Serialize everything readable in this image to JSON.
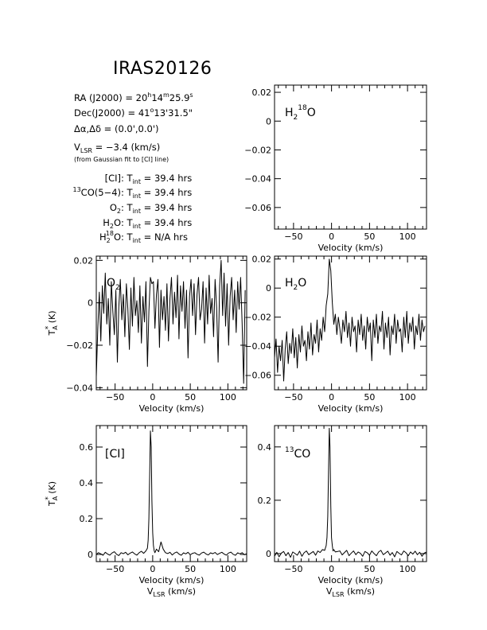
{
  "header": {
    "title": "IRAS20126",
    "ra": {
      "lead": "RA (J2000) =  20",
      "h": "h",
      "mid1": "14",
      "m": "m",
      "mid2": "25.9",
      "s": "s"
    },
    "dec": {
      "lead": "Dec(J2000) =  41",
      "deg": "o",
      "tail": "13'31.5\""
    },
    "offset": "Δα,Δδ = (0.0',0.0')",
    "vlsr": {
      "lead": "V",
      "sub": "LSR",
      "tail": " = −3.4 (km/s)"
    },
    "vlsr_note": "(from Gaussian fit to [CI] line)",
    "integrations": [
      {
        "pre": "",
        "sup": "",
        "name": "[CI]",
        "sub": "",
        "sup2": "",
        "rest": "",
        "tint": "39.4"
      },
      {
        "pre": "",
        "sup": "13",
        "name": "CO(5−4)",
        "sub": "",
        "sup2": "",
        "rest": "",
        "tint": "39.4"
      },
      {
        "pre": "",
        "sup": "",
        "name": "O",
        "sub": "2",
        "sup2": "",
        "rest": "",
        "tint": "39.4"
      },
      {
        "pre": "",
        "sup": "",
        "name": "H",
        "sub": "2",
        "sup2": "",
        "rest": "O",
        "tint": "39.4"
      },
      {
        "pre": "",
        "sup": "",
        "name": "H",
        "sub": "2",
        "sup2": "18",
        "rest": "O",
        "tint": "N/A"
      }
    ],
    "tint_label": "T",
    "tint_sub": "int",
    "tint_unit": "hrs"
  },
  "labels": {
    "velocity_axis": "Velocity (km/s)",
    "vlsr_axis_main": "V",
    "vlsr_axis_sub": "LSR",
    "vlsr_axis_unit": " (km/s)",
    "ta_axis_main": "T",
    "ta_axis_sub": "A",
    "ta_axis_sup": "*",
    "ta_axis_unit": " (K)"
  },
  "chart_data": [
    {
      "id": "h218o",
      "type": "line",
      "label": {
        "main": "H",
        "sub": "2",
        "sup": "18",
        "rest": "O"
      },
      "xlim": [
        -75,
        125
      ],
      "ylim": [
        -0.075,
        0.025
      ],
      "yticks": [
        0.02,
        0,
        -0.02,
        -0.04,
        -0.06
      ],
      "ytick_labels": [
        "0.02",
        "0",
        "−0.02",
        "−0.04",
        "−0.06"
      ],
      "xticks": [
        -50,
        0,
        50,
        100
      ],
      "xtick_labels": [
        "−50",
        "0",
        "50",
        "100"
      ],
      "xlabel": "velocity",
      "ylabel": "",
      "series": []
    },
    {
      "id": "o2",
      "type": "line",
      "label": {
        "main": "O",
        "sub": "2",
        "sup": "",
        "rest": ""
      },
      "xlim": [
        -75,
        125
      ],
      "ylim": [
        -0.041,
        0.022
      ],
      "yticks": [
        0.02,
        0,
        -0.02,
        -0.04
      ],
      "ytick_labels": [
        "0.02",
        "0",
        "−0.02",
        "−0.04"
      ],
      "xticks": [
        -50,
        0,
        50,
        100
      ],
      "xtick_labels": [
        "−50",
        "0",
        "50",
        "100"
      ],
      "xlabel": "velocity",
      "ylabel": "ta",
      "series": [
        {
          "x": [
            -75,
            -73,
            -71,
            -69,
            -67,
            -65,
            -63,
            -61,
            -59,
            -57,
            -55,
            -53,
            -51,
            -49,
            -47,
            -45,
            -43,
            -41,
            -39,
            -37,
            -35,
            -33,
            -31,
            -29,
            -27,
            -25,
            -23,
            -21,
            -19,
            -17,
            -15,
            -13,
            -11,
            -9,
            -7,
            -5,
            -3,
            -1,
            1,
            3,
            5,
            7,
            9,
            11,
            13,
            15,
            17,
            19,
            21,
            23,
            25,
            27,
            29,
            31,
            33,
            35,
            37,
            39,
            41,
            43,
            45,
            47,
            49,
            51,
            53,
            55,
            57,
            59,
            61,
            63,
            65,
            67,
            69,
            71,
            73,
            75,
            77,
            79,
            81,
            83,
            85,
            87,
            89,
            91,
            93,
            95,
            97,
            99,
            101,
            103,
            105,
            107,
            109,
            111,
            113,
            115,
            117,
            119,
            121,
            123
          ],
          "y": [
            -0.035,
            -0.012,
            0.005,
            -0.018,
            0.008,
            -0.005,
            0.014,
            -0.01,
            0.002,
            -0.02,
            0.01,
            -0.004,
            -0.015,
            0.006,
            -0.028,
            -0.002,
            0.011,
            -0.008,
            0.004,
            -0.016,
            0.009,
            -0.003,
            -0.022,
            0.007,
            -0.011,
            0.012,
            -0.006,
            0.001,
            -0.014,
            0.008,
            -0.019,
            0.003,
            -0.009,
            0.01,
            -0.03,
            -0.004,
            0.012,
            0.009,
            0.01,
            -0.012,
            0.004,
            0.011,
            -0.021,
            0.006,
            -0.008,
            0.003,
            -0.013,
            0.009,
            -0.018,
            0.002,
            0.012,
            -0.01,
            0.005,
            -0.007,
            0.013,
            -0.017,
            0.008,
            -0.004,
            0.01,
            -0.012,
            0.006,
            -0.026,
            0.003,
            0.011,
            -0.006,
            0.009,
            -0.015,
            0.004,
            0.012,
            -0.008,
            -0.003,
            0.01,
            -0.019,
            0.007,
            -0.01,
            0.013,
            -0.005,
            0.002,
            -0.016,
            0.011,
            -0.002,
            -0.028,
            0.008,
            0.02,
            -0.006,
            0.014,
            -0.011,
            0.009,
            -0.02,
            0.003,
            0.012,
            -0.008,
            0.006,
            -0.014,
            0.01,
            -0.003,
            0.012,
            -0.01,
            -0.038,
            0.006
          ]
        }
      ]
    },
    {
      "id": "h2o",
      "type": "line",
      "label": {
        "main": "H",
        "sub": "2",
        "sup": "",
        "rest": "O"
      },
      "xlim": [
        -75,
        125
      ],
      "ylim": [
        -0.07,
        0.022
      ],
      "yticks": [
        0.02,
        0,
        -0.02,
        -0.04,
        -0.06
      ],
      "ytick_labels": [
        "0.02",
        "0",
        "−0.02",
        "−0.04",
        "−0.06"
      ],
      "xticks": [
        -50,
        0,
        50,
        100
      ],
      "xtick_labels": [
        "−50",
        "0",
        "50",
        "100"
      ],
      "xlabel": "velocity",
      "ylabel": "",
      "series": [
        {
          "x": [
            -75,
            -73,
            -71,
            -69,
            -67,
            -65,
            -63,
            -61,
            -59,
            -57,
            -55,
            -53,
            -51,
            -49,
            -47,
            -45,
            -43,
            -41,
            -39,
            -37,
            -35,
            -33,
            -31,
            -29,
            -27,
            -25,
            -23,
            -21,
            -19,
            -17,
            -15,
            -13,
            -11,
            -9,
            -7,
            -5,
            -3,
            -1,
            1,
            3,
            5,
            7,
            9,
            11,
            13,
            15,
            17,
            19,
            21,
            23,
            25,
            27,
            29,
            31,
            33,
            35,
            37,
            39,
            41,
            43,
            45,
            47,
            49,
            51,
            53,
            55,
            57,
            59,
            61,
            63,
            65,
            67,
            69,
            71,
            73,
            75,
            77,
            79,
            81,
            83,
            85,
            87,
            89,
            91,
            93,
            95,
            97,
            99,
            101,
            103,
            105,
            107,
            109,
            111,
            113,
            115,
            117,
            119,
            121,
            123
          ],
          "y": [
            -0.048,
            -0.035,
            -0.058,
            -0.04,
            -0.05,
            -0.036,
            -0.064,
            -0.042,
            -0.03,
            -0.052,
            -0.038,
            -0.045,
            -0.028,
            -0.048,
            -0.034,
            -0.055,
            -0.032,
            -0.044,
            -0.026,
            -0.04,
            -0.036,
            -0.05,
            -0.03,
            -0.042,
            -0.024,
            -0.046,
            -0.032,
            -0.038,
            -0.022,
            -0.044,
            -0.028,
            -0.036,
            -0.02,
            -0.03,
            -0.012,
            -0.004,
            0.02,
            0.012,
            -0.01,
            -0.025,
            -0.018,
            -0.032,
            -0.02,
            -0.028,
            -0.038,
            -0.022,
            -0.03,
            -0.016,
            -0.034,
            -0.024,
            -0.04,
            -0.02,
            -0.03,
            -0.026,
            -0.044,
            -0.022,
            -0.032,
            -0.018,
            -0.036,
            -0.026,
            -0.042,
            -0.02,
            -0.03,
            -0.024,
            -0.05,
            -0.022,
            -0.034,
            -0.018,
            -0.038,
            -0.026,
            -0.03,
            -0.016,
            -0.042,
            -0.024,
            -0.034,
            -0.02,
            -0.046,
            -0.026,
            -0.032,
            -0.018,
            -0.038,
            -0.022,
            -0.03,
            -0.028,
            -0.044,
            -0.02,
            -0.034,
            -0.016,
            -0.038,
            -0.024,
            -0.03,
            -0.02,
            -0.042,
            -0.026,
            -0.032,
            -0.018,
            -0.036,
            -0.022,
            -0.03,
            -0.026
          ]
        }
      ]
    },
    {
      "id": "ci",
      "type": "line",
      "label": {
        "main": "[CI]",
        "sub": "",
        "sup": "",
        "rest": ""
      },
      "xlim": [
        -75,
        125
      ],
      "ylim": [
        -0.04,
        0.72
      ],
      "yticks": [
        0.6,
        0.4,
        0.2,
        0
      ],
      "ytick_labels": [
        "0.6",
        "0.4",
        "0.2",
        "0"
      ],
      "xticks": [
        -50,
        0,
        50,
        100
      ],
      "xtick_labels": [
        "−50",
        "0",
        "50",
        "100"
      ],
      "xlabel": "vlsr",
      "ylabel": "ta",
      "series": [
        {
          "x": [
            -75,
            -72,
            -69,
            -66,
            -63,
            -60,
            -57,
            -54,
            -51,
            -48,
            -45,
            -42,
            -39,
            -36,
            -33,
            -30,
            -27,
            -24,
            -21,
            -18,
            -15,
            -12,
            -9,
            -7,
            -6,
            -5,
            -4,
            -3,
            -2,
            -1,
            0,
            1,
            2,
            3,
            5,
            8,
            11,
            14,
            17,
            20,
            23,
            26,
            29,
            32,
            35,
            38,
            41,
            44,
            47,
            50,
            53,
            56,
            59,
            62,
            65,
            68,
            71,
            74,
            77,
            80,
            83,
            86,
            89,
            92,
            95,
            98,
            101,
            104,
            107,
            110,
            113,
            116,
            119,
            122,
            125
          ],
          "y": [
            0.0,
            0.01,
            0.003,
            -0.005,
            0.012,
            0.002,
            -0.004,
            0.008,
            0.015,
            0.001,
            -0.006,
            0.01,
            0.004,
            0.012,
            -0.002,
            0.007,
            0.014,
            0.003,
            -0.004,
            0.01,
            0.018,
            0.006,
            0.02,
            0.035,
            0.08,
            0.2,
            0.45,
            0.69,
            0.6,
            0.3,
            0.12,
            0.05,
            0.02,
            0.01,
            0.03,
            0.015,
            0.07,
            0.03,
            0.01,
            0.005,
            0.012,
            -0.003,
            0.008,
            0.014,
            0.002,
            -0.005,
            0.009,
            0.003,
            0.012,
            -0.002,
            0.006,
            0.01,
            0.001,
            -0.004,
            0.008,
            0.013,
            0.002,
            -0.003,
            0.009,
            0.004,
            0.011,
            -0.001,
            0.006,
            0.012,
            0.002,
            -0.004,
            0.008,
            0.013,
            0.001,
            -0.005,
            0.009,
            0.003,
            0.01,
            -0.002,
            0.005
          ]
        }
      ]
    },
    {
      "id": "13co",
      "type": "line",
      "label": {
        "main": "CO",
        "sub": "",
        "sup": "13",
        "rest": ""
      },
      "xlim": [
        -75,
        125
      ],
      "ylim": [
        -0.03,
        0.48
      ],
      "yticks": [
        0.4,
        0.2,
        0
      ],
      "ytick_labels": [
        "0.4",
        "0.2",
        "0"
      ],
      "xticks": [
        -50,
        0,
        50,
        100
      ],
      "xtick_labels": [
        "−50",
        "0",
        "50",
        "100"
      ],
      "xlabel": "vlsr",
      "ylabel": "",
      "series": [
        {
          "x": [
            -75,
            -72,
            -69,
            -66,
            -63,
            -60,
            -57,
            -54,
            -51,
            -48,
            -45,
            -42,
            -39,
            -36,
            -33,
            -30,
            -27,
            -24,
            -21,
            -18,
            -15,
            -12,
            -9,
            -7,
            -6,
            -5,
            -4,
            -3,
            -2,
            -1,
            0,
            1,
            2,
            3,
            5,
            8,
            11,
            14,
            17,
            20,
            23,
            26,
            29,
            32,
            35,
            38,
            41,
            44,
            47,
            50,
            53,
            56,
            59,
            62,
            65,
            68,
            71,
            74,
            77,
            80,
            83,
            86,
            89,
            92,
            95,
            98,
            101,
            104,
            107,
            110,
            113,
            116,
            119,
            122,
            125
          ],
          "y": [
            -0.01,
            0.005,
            -0.012,
            0.002,
            0.008,
            -0.008,
            0.004,
            -0.014,
            0.006,
            0.0,
            -0.006,
            0.009,
            -0.01,
            0.003,
            0.01,
            -0.004,
            0.002,
            0.008,
            -0.006,
            0.01,
            0.004,
            0.015,
            0.012,
            0.03,
            0.06,
            0.14,
            0.3,
            0.47,
            0.4,
            0.18,
            0.06,
            0.03,
            0.01,
            0.015,
            0.006,
            0.008,
            0.01,
            -0.005,
            0.004,
            0.012,
            -0.008,
            0.002,
            0.01,
            -0.004,
            0.006,
            0.001,
            -0.01,
            0.008,
            0.003,
            -0.006,
            0.01,
            0.0,
            -0.008,
            0.006,
            0.012,
            -0.004,
            0.002,
            0.009,
            -0.006,
            0.004,
            -0.012,
            0.008,
            0.001,
            -0.005,
            0.01,
            0.003,
            -0.008,
            0.006,
            -0.002,
            0.009,
            -0.004,
            0.005,
            -0.01,
            0.002,
            0.006
          ]
        }
      ]
    }
  ]
}
